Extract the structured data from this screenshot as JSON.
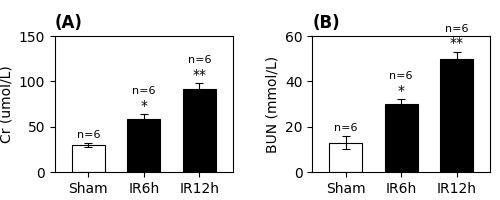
{
  "chart_data": [
    {
      "type": "bar",
      "title": "(A)",
      "categories": [
        "Sham",
        "IR6h",
        "IR12h"
      ],
      "values": [
        30,
        58,
        92
      ],
      "errors": [
        2,
        6,
        6
      ],
      "colors": [
        "white",
        "black",
        "black"
      ],
      "ylabel": "Cr (umol/L)",
      "ylim": [
        0,
        150
      ],
      "yticks": [
        0,
        50,
        100,
        150
      ],
      "n_labels": [
        "n=6",
        "n=6",
        "n=6"
      ],
      "significance_labels": [
        null,
        "*",
        "**"
      ]
    },
    {
      "type": "bar",
      "title": "(B)",
      "categories": [
        "Sham",
        "IR6h",
        "IR12h"
      ],
      "values": [
        13,
        30,
        50
      ],
      "errors": [
        3,
        2,
        3
      ],
      "colors": [
        "white",
        "black",
        "black"
      ],
      "ylabel": "BUN (mmol/L)",
      "ylim": [
        0,
        60
      ],
      "yticks": [
        0,
        20,
        40,
        60
      ],
      "n_labels": [
        "n=6",
        "n=6",
        "n=6"
      ],
      "significance_labels": [
        null,
        "*",
        "**"
      ]
    }
  ]
}
